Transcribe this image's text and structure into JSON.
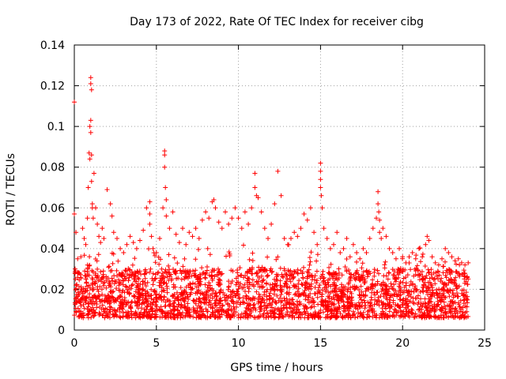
{
  "chart_data": {
    "type": "scatter",
    "title": "Day 173 of 2022, Rate Of TEC Index for receiver cibg",
    "xlabel": "GPS time / hours",
    "ylabel": "ROTI / TECUs",
    "xlim": [
      0,
      25
    ],
    "ylim": [
      0,
      0.14
    ],
    "x_ticks": [
      0,
      5,
      10,
      15,
      20,
      25
    ],
    "x_tick_labels": [
      "0",
      "5",
      "10",
      "15",
      "20",
      "25"
    ],
    "y_ticks": [
      0,
      0.02,
      0.04,
      0.06,
      0.08,
      0.1,
      0.12,
      0.14
    ],
    "y_tick_labels": [
      "0",
      "0.02",
      "0.04",
      "0.06",
      "0.08",
      "0.1",
      "0.12",
      "0.14"
    ],
    "grid": true,
    "marker": "+",
    "color": "#ff0000",
    "series": [
      {
        "name": "ROTI",
        "x": [
          0.0,
          0.0,
          0.1,
          0.05,
          0.1,
          0.2,
          0.3,
          0.4,
          0.5,
          0.6,
          0.7,
          0.8,
          0.85,
          0.9,
          0.95,
          0.95,
          1.0,
          1.0,
          1.0,
          1.0,
          1.05,
          1.05,
          1.05,
          1.1,
          1.1,
          1.15,
          1.2,
          1.3,
          1.4,
          1.5,
          1.6,
          1.7,
          1.8,
          2.0,
          2.2,
          2.3,
          2.4,
          2.6,
          2.8,
          3.0,
          3.2,
          3.4,
          3.6,
          3.8,
          4.0,
          4.2,
          4.4,
          4.6,
          4.6,
          4.6,
          4.7,
          4.8,
          5.0,
          5.2,
          5.4,
          5.5,
          5.5,
          5.5,
          5.55,
          5.6,
          5.6,
          5.8,
          6.0,
          6.2,
          6.4,
          6.6,
          6.8,
          7.0,
          7.2,
          7.4,
          7.6,
          7.8,
          8.0,
          8.2,
          8.4,
          8.5,
          8.6,
          8.8,
          9.0,
          9.2,
          9.4,
          9.6,
          9.8,
          10.0,
          10.2,
          10.4,
          10.6,
          10.8,
          11.0,
          11.0,
          11.1,
          11.2,
          11.4,
          11.6,
          11.8,
          12.0,
          12.2,
          12.4,
          12.6,
          12.8,
          13.0,
          13.2,
          13.4,
          13.6,
          13.8,
          14.0,
          14.2,
          14.4,
          14.6,
          14.8,
          15.0,
          15.0,
          15.0,
          15.0,
          15.05,
          15.1,
          15.2,
          15.4,
          15.6,
          15.8,
          16.0,
          16.2,
          16.4,
          16.6,
          16.8,
          17.0,
          17.2,
          17.4,
          17.6,
          17.8,
          18.0,
          18.2,
          18.4,
          18.5,
          18.5,
          18.55,
          18.6,
          18.6,
          18.7,
          18.8,
          19.0,
          19.2,
          19.4,
          19.6,
          19.8,
          20.0,
          20.2,
          20.4,
          20.6,
          20.8,
          21.0,
          21.2,
          21.4,
          21.5,
          21.6,
          21.8,
          22.0,
          22.2,
          22.4,
          22.6,
          22.8,
          23.0,
          23.2,
          23.4,
          23.6,
          23.8,
          24.0
        ],
        "y": [
          0.112,
          0.057,
          0.048,
          0.03,
          0.022,
          0.035,
          0.028,
          0.036,
          0.05,
          0.045,
          0.042,
          0.055,
          0.07,
          0.087,
          0.1,
          0.084,
          0.124,
          0.121,
          0.103,
          0.097,
          0.118,
          0.086,
          0.073,
          0.062,
          0.06,
          0.055,
          0.077,
          0.06,
          0.052,
          0.046,
          0.043,
          0.05,
          0.045,
          0.069,
          0.062,
          0.056,
          0.048,
          0.045,
          0.04,
          0.038,
          0.042,
          0.046,
          0.043,
          0.04,
          0.044,
          0.049,
          0.06,
          0.063,
          0.057,
          0.052,
          0.046,
          0.04,
          0.038,
          0.045,
          0.06,
          0.088,
          0.086,
          0.08,
          0.07,
          0.064,
          0.056,
          0.05,
          0.058,
          0.047,
          0.043,
          0.05,
          0.042,
          0.048,
          0.046,
          0.05,
          0.045,
          0.054,
          0.058,
          0.055,
          0.063,
          0.064,
          0.06,
          0.053,
          0.05,
          0.058,
          0.052,
          0.055,
          0.06,
          0.055,
          0.05,
          0.058,
          0.052,
          0.06,
          0.077,
          0.07,
          0.066,
          0.065,
          0.058,
          0.05,
          0.045,
          0.052,
          0.062,
          0.078,
          0.066,
          0.045,
          0.042,
          0.045,
          0.048,
          0.046,
          0.05,
          0.057,
          0.054,
          0.06,
          0.048,
          0.042,
          0.082,
          0.078,
          0.074,
          0.07,
          0.066,
          0.06,
          0.05,
          0.045,
          0.04,
          0.042,
          0.048,
          0.038,
          0.04,
          0.045,
          0.036,
          0.042,
          0.038,
          0.035,
          0.04,
          0.038,
          0.045,
          0.05,
          0.055,
          0.062,
          0.068,
          0.058,
          0.054,
          0.048,
          0.045,
          0.05,
          0.046,
          0.04,
          0.038,
          0.035,
          0.04,
          0.036,
          0.033,
          0.036,
          0.038,
          0.035,
          0.04,
          0.036,
          0.042,
          0.046,
          0.044,
          0.036,
          0.033,
          0.032,
          0.035,
          0.04,
          0.038,
          0.036,
          0.034,
          0.035,
          0.033,
          0.032,
          0.033
        ],
        "band_baseline": {
          "x_range": [
            0,
            24
          ],
          "typical_min": 0.006,
          "typical_max": 0.03,
          "note": "dense cloud of points 0.006 to 0.03 across the whole day"
        }
      }
    ]
  }
}
